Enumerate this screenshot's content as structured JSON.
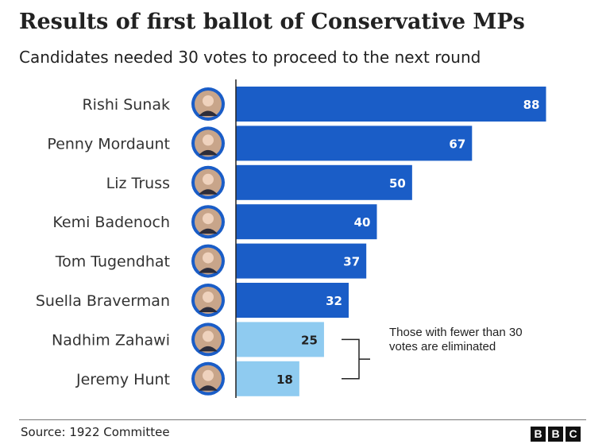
{
  "chart_data": {
    "type": "bar",
    "orientation": "horizontal",
    "title": "Results of first ballot of Conservative MPs",
    "subtitle": "Candidates needed 30 votes to proceed to the next round",
    "categories": [
      "Rishi Sunak",
      "Penny Mordaunt",
      "Liz Truss",
      "Kemi Badenoch",
      "Tom Tugendhat",
      "Suella Braverman",
      "Nadhim Zahawi",
      "Jeremy Hunt"
    ],
    "values": [
      88,
      67,
      50,
      40,
      37,
      32,
      25,
      18
    ],
    "value_labels": [
      "88",
      "67",
      "50",
      "40",
      "37",
      "32",
      "25",
      "18"
    ],
    "threshold": 30,
    "xlim": [
      0,
      90
    ],
    "grid": false,
    "colors": {
      "proceed": "#1a5dc7",
      "eliminated": "#8fcbf0",
      "label_on_dark": "#ffffff",
      "label_on_light": "#222222",
      "avatar_ring": "#1a5dc7"
    },
    "annotation": "Those with fewer than 30 votes are eliminated"
  },
  "footer": {
    "source": "Source: 1922 Committee",
    "logo": [
      "B",
      "B",
      "C"
    ]
  }
}
